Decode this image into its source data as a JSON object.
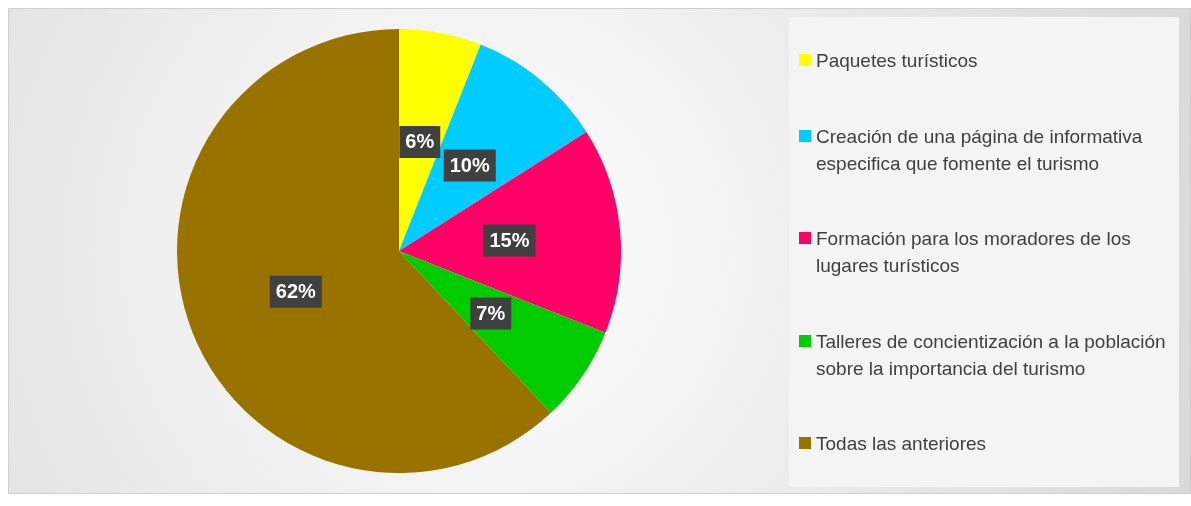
{
  "chart_data": {
    "type": "pie",
    "categories": [
      "Paquetes turísticos",
      "Creación de una página de informativa especifica que fomente el turismo",
      "Formación para los moradores de los lugares turísticos",
      "Talleres de concientización a la población sobre la importancia del turismo",
      "Todas las anteriores"
    ],
    "values": [
      6,
      10,
      15,
      7,
      62
    ],
    "colors": [
      "#ffff00",
      "#00ccff",
      "#ff0066",
      "#00cc00",
      "#997300"
    ],
    "value_labels": [
      "6%",
      "10%",
      "15%",
      "7%",
      "62%"
    ],
    "legend": "right"
  }
}
